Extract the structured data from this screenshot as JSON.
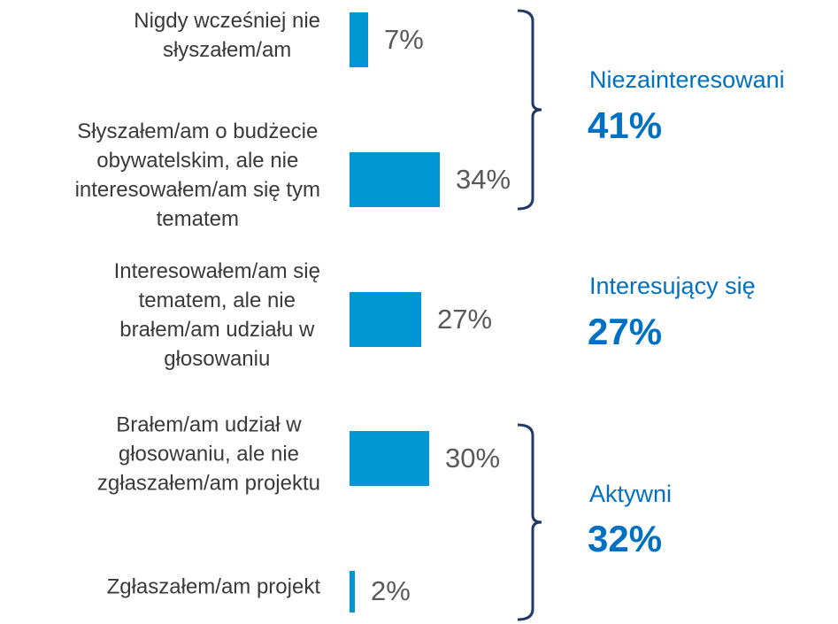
{
  "chart_data": {
    "type": "bar",
    "orientation": "horizontal",
    "categories": [
      [
        "Nigdy wcześniej nie",
        "słyszałem/am"
      ],
      [
        "Słyszałem/am o budżecie",
        "obywatelskim, ale nie",
        "interesowałem/am się tym",
        "tematem"
      ],
      [
        "Interesowałem/am się",
        "tematem, ale nie",
        "brałem/am udziału w",
        "głosowaniu"
      ],
      [
        "Brałem/am udział w",
        "głosowaniu, ale nie",
        "zgłaszałem/am projektu"
      ],
      [
        "Zgłaszałem/am projekt"
      ]
    ],
    "values": [
      7,
      34,
      27,
      30,
      2
    ],
    "value_labels": [
      "7%",
      "34%",
      "27%",
      "30%",
      "2%"
    ],
    "color": "#0096d6",
    "groups": [
      {
        "name": "Niezainteresowani",
        "value": 41,
        "value_label": "41%"
      },
      {
        "name": "Interesujący się",
        "value": 27,
        "value_label": "27%"
      },
      {
        "name": "Aktywni",
        "value": 32,
        "value_label": "32%"
      }
    ]
  }
}
